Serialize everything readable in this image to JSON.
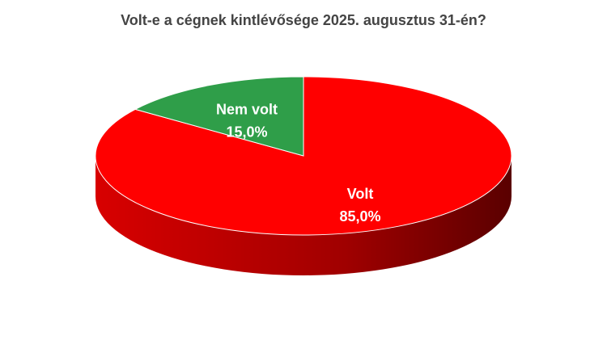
{
  "chart_data": {
    "type": "pie",
    "title": "Volt-e a cégnek kintlévősége 2025. augusztus 31-én?",
    "categories": [
      "Volt",
      "Nem volt"
    ],
    "values": [
      85,
      15
    ],
    "value_labels": [
      "85,0%",
      "15,0%"
    ],
    "colors": [
      "#ff0000",
      "#2f9e49"
    ],
    "start_angle": 0
  }
}
